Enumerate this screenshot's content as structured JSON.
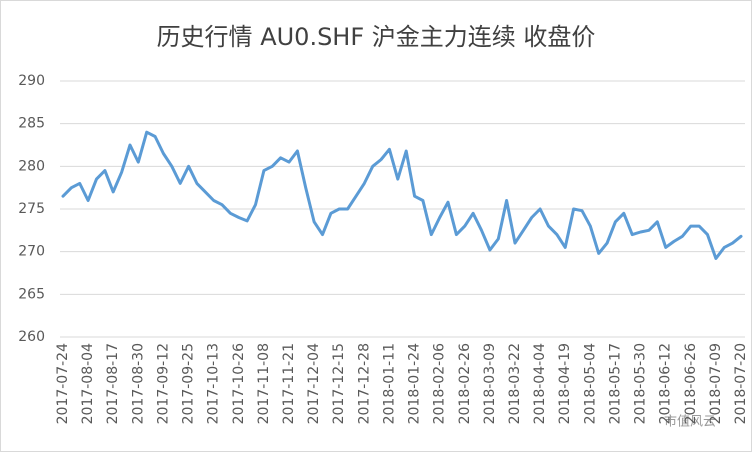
{
  "chart_data": {
    "type": "line",
    "title": "历史行情 AU0.SHF 沪金主力连续 收盘价",
    "categories": [
      "2017-07-24",
      null,
      null,
      "2017-08-04",
      null,
      null,
      "2017-08-17",
      null,
      null,
      "2017-08-30",
      null,
      null,
      "2017-09-12",
      null,
      null,
      "2017-09-25",
      null,
      null,
      "2017-10-13",
      null,
      null,
      "2017-10-26",
      null,
      null,
      "2017-11-08",
      null,
      null,
      "2017-11-21",
      null,
      null,
      "2017-12-04",
      null,
      null,
      "2017-12-15",
      null,
      null,
      "2017-12-28",
      null,
      null,
      "2018-01-11",
      null,
      null,
      "2018-01-24",
      null,
      null,
      "2018-02-06",
      null,
      null,
      "2018-02-26",
      null,
      null,
      "2018-03-09",
      null,
      null,
      "2018-03-22",
      null,
      null,
      "2018-04-04",
      null,
      null,
      "2018-04-19",
      null,
      null,
      "2018-05-04",
      null,
      null,
      "2018-05-17",
      null,
      null,
      "2018-05-30",
      null,
      null,
      "2018-06-12",
      null,
      null,
      "2018-06-26",
      null,
      null,
      "2018-07-09",
      null,
      null,
      "2018-07-20"
    ],
    "values": [
      276.5,
      277.5,
      278,
      276,
      278.5,
      279.5,
      277,
      279.3,
      282.5,
      280.5,
      284,
      283.5,
      281.5,
      280,
      278,
      280,
      278,
      277,
      276,
      275.5,
      274.5,
      274,
      273.6,
      275.5,
      279.5,
      280,
      281,
      280.5,
      281.8,
      277.5,
      273.5,
      272,
      274.5,
      275,
      275,
      276.5,
      278,
      280,
      280.8,
      282,
      278.5,
      281.8,
      276.5,
      276,
      272,
      274,
      275.8,
      272,
      273,
      274.5,
      272.5,
      270.2,
      271.5,
      276,
      271,
      272.5,
      274,
      275,
      273,
      272,
      270.5,
      275,
      274.8,
      273,
      269.8,
      271,
      273.5,
      274.5,
      272,
      272.3,
      272.5,
      273.5,
      270.5,
      271.2,
      271.8,
      273,
      273,
      272,
      269.2,
      270.5,
      271,
      271.8
    ],
    "color": "#5b9bd5",
    "ylim": [
      260,
      290
    ],
    "yticks": [
      260,
      265,
      270,
      275,
      280,
      285,
      290
    ],
    "grid": true,
    "watermark": "市值风云"
  }
}
